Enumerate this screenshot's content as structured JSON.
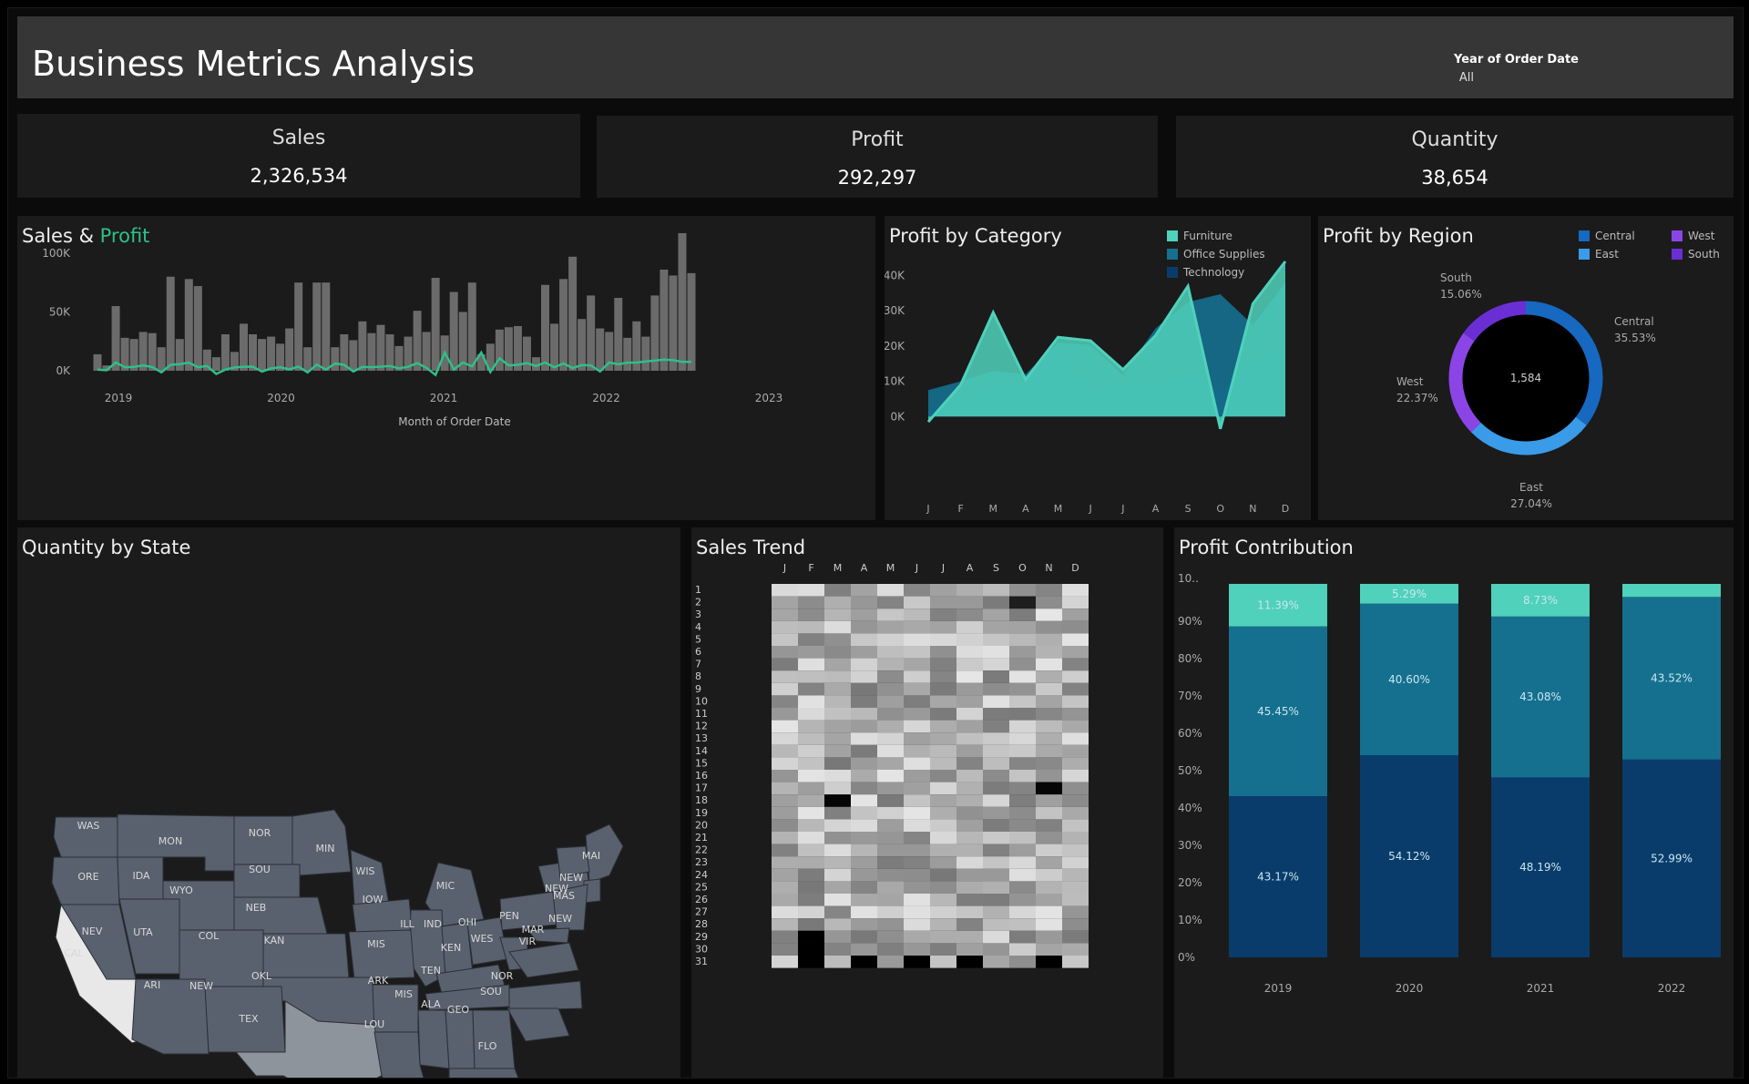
{
  "header": {
    "title": "Business Metrics Analysis",
    "filter_label": "Year of Order Date",
    "filter_value": "All"
  },
  "kpis": [
    {
      "label": "Sales",
      "value": "2,326,534"
    },
    {
      "label": "Profit",
      "value": "292,297"
    },
    {
      "label": "Quantity",
      "value": "38,654"
    }
  ],
  "colors": {
    "accent_green": "#2fbf8a",
    "furniture": "#4fd1bb",
    "office": "#15708f",
    "technology": "#0a3c6b",
    "central": "#1668c0",
    "east": "#3a9be8",
    "west": "#8b45e6",
    "south": "#6a2fd4"
  },
  "sales_profit": {
    "title_a": "Sales &",
    "title_b": "Profit",
    "xlabel": "Month of Order Date"
  },
  "profit_category": {
    "title": "Profit by Category",
    "legend": [
      "Furniture",
      "Office Supplies",
      "Technology"
    ]
  },
  "profit_region": {
    "title": "Profit by Region",
    "legend": [
      "Central",
      "East",
      "West",
      "South"
    ],
    "center_value": "1,584",
    "labels": [
      {
        "name": "South",
        "pct": "15.06%"
      },
      {
        "name": "Central",
        "pct": "35.53%"
      },
      {
        "name": "West",
        "pct": "22.37%"
      },
      {
        "name": "East",
        "pct": "27.04%"
      }
    ]
  },
  "quantity_state": {
    "title": "Quantity by State",
    "labels": [
      "WAS",
      "MON",
      "NOR",
      "MIN",
      "MAI",
      "ORE",
      "IDA",
      "SOU",
      "WIS",
      "NEW",
      "NEW",
      "MAS",
      "WYO",
      "MIC",
      "IOW",
      "NEB",
      "PEN",
      "NEW",
      "MAR",
      "NEV",
      "UTA",
      "COL",
      "ILL",
      "IND",
      "OHI",
      "WES",
      "VIR",
      "KAN",
      "MIS",
      "KEN",
      "CAL",
      "TEN",
      "NOR",
      "OKL",
      "ARK",
      "ARI",
      "NEW",
      "SOU",
      "MIS",
      "ALA",
      "GEO",
      "TEX",
      "LOU",
      "FLO"
    ]
  },
  "sales_trend": {
    "title": "Sales Trend",
    "months": [
      "J",
      "F",
      "M",
      "A",
      "M",
      "J",
      "J",
      "A",
      "S",
      "O",
      "N",
      "D"
    ],
    "days": [
      "1",
      "2",
      "3",
      "4",
      "5",
      "6",
      "7",
      "8",
      "9",
      "10",
      "11",
      "12",
      "13",
      "14",
      "15",
      "16",
      "17",
      "18",
      "19",
      "20",
      "21",
      "22",
      "23",
      "24",
      "25",
      "26",
      "27",
      "28",
      "29",
      "30",
      "31"
    ]
  },
  "profit_contribution": {
    "title": "Profit Contribution",
    "yticks": [
      "10..",
      "90%",
      "80%",
      "70%",
      "60%",
      "50%",
      "40%",
      "30%",
      "20%",
      "10%",
      "0%"
    ],
    "labels": [
      [
        "11.39%",
        "45.45%",
        "43.17%"
      ],
      [
        "5.29%",
        "40.60%",
        "54.12%"
      ],
      [
        "8.73%",
        "43.08%",
        "48.19%"
      ],
      [
        "",
        "43.52%",
        "52.99%"
      ]
    ]
  },
  "chart_data": [
    {
      "type": "bar",
      "title": "Sales & Profit",
      "xlabel": "Month of Order Date",
      "x_ticks": [
        "2019",
        "2020",
        "2021",
        "2022",
        "2023"
      ],
      "y_ticks": [
        "100K",
        "50K",
        "0K"
      ],
      "ylim": [
        0,
        110000
      ],
      "series": [
        {
          "name": "Sales",
          "values": [
            14000,
            4500,
            55000,
            28000,
            27000,
            33000,
            32000,
            20000,
            80000,
            27000,
            78000,
            72000,
            18000,
            11500,
            31000,
            16000,
            40000,
            31000,
            27000,
            29000,
            23000,
            36000,
            75000,
            20000,
            75000,
            75000,
            20000,
            31000,
            26000,
            42000,
            32000,
            39000,
            31000,
            21000,
            29000,
            51000,
            33000,
            79000,
            30000,
            67000,
            50000,
            75000,
            14000,
            23000,
            35000,
            37000,
            38000,
            29000,
            11500,
            73000,
            40000,
            78000,
            97000,
            44000,
            64000,
            36000,
            33000,
            62000,
            28000,
            42000,
            29000,
            64000,
            86000,
            81000,
            117000,
            83000
          ]
        },
        {
          "name": "Profit",
          "values": [
            1000,
            400,
            7000,
            3000,
            3300,
            4500,
            3200,
            -1300,
            5000,
            5600,
            7000,
            3000,
            4000,
            -2700,
            1000,
            2800,
            3400,
            3500,
            -700,
            2000,
            3000,
            1200,
            3500,
            -1400,
            5300,
            1000,
            6100,
            5000,
            -600,
            3300,
            3000,
            3500,
            4000,
            2000,
            3300,
            6500,
            2500,
            -3600,
            15500,
            1100,
            7000,
            3800,
            15500,
            -1000,
            10500,
            4600,
            5000,
            6500,
            4000,
            7000,
            3000,
            6200,
            2300,
            4800,
            4600,
            -600,
            7000,
            5500,
            6900,
            7000,
            8000,
            8600,
            9500,
            9000,
            7500,
            7500
          ]
        }
      ]
    },
    {
      "type": "area",
      "title": "Profit by Category",
      "categories": [
        "J",
        "F",
        "M",
        "A",
        "M",
        "J",
        "J",
        "A",
        "S",
        "O",
        "N",
        "D"
      ],
      "y_ticks": [
        "40K",
        "30K",
        "20K",
        "10K",
        "0K"
      ],
      "ylim": [
        -2000,
        44000
      ],
      "series": [
        {
          "name": "Technology",
          "values": [
            1000,
            5200,
            9500,
            11000,
            19800,
            8500,
            9000,
            9000,
            13500,
            6500,
            16500,
            19500
          ]
        },
        {
          "name": "Office Supplies",
          "values": [
            7500,
            10000,
            13000,
            12000,
            21000,
            20300,
            11800,
            25000,
            32500,
            34700,
            26000,
            38000
          ]
        },
        {
          "name": "Furniture",
          "values": [
            -1500,
            9000,
            29500,
            10500,
            22500,
            21500,
            13300,
            23000,
            37000,
            -3500,
            32000,
            44000
          ]
        }
      ]
    },
    {
      "type": "pie",
      "title": "Profit by Region",
      "categories": [
        "Central",
        "East",
        "West",
        "South"
      ],
      "values": [
        35.53,
        27.04,
        22.37,
        15.06
      ]
    },
    {
      "type": "heatmap",
      "title": "Sales Trend",
      "x": [
        "J",
        "F",
        "M",
        "A",
        "M",
        "J",
        "J",
        "A",
        "S",
        "O",
        "N",
        "D"
      ],
      "y": [
        "1",
        "2",
        "3",
        "4",
        "5",
        "6",
        "7",
        "8",
        "9",
        "10",
        "11",
        "12",
        "13",
        "14",
        "15",
        "16",
        "17",
        "18",
        "19",
        "20",
        "21",
        "22",
        "23",
        "24",
        "25",
        "26",
        "27",
        "28",
        "29",
        "30",
        "31"
      ]
    },
    {
      "type": "bar",
      "title": "Profit Contribution",
      "categories": [
        "2019",
        "2020",
        "2021",
        "2022"
      ],
      "series": [
        {
          "values": [
            11.39,
            5.29,
            8.73,
            3.49
          ]
        },
        {
          "values": [
            45.45,
            40.6,
            43.08,
            43.52
          ]
        },
        {
          "values": [
            43.17,
            54.12,
            48.19,
            52.99
          ]
        }
      ]
    }
  ]
}
